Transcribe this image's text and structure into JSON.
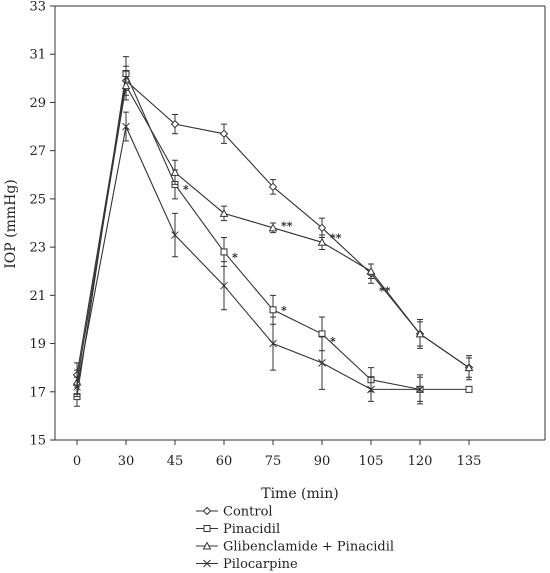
{
  "chart_data": {
    "type": "line",
    "title": "",
    "xlabel": "Time (min)",
    "ylabel": "IOP (mmHg)",
    "x": [
      0,
      30,
      45,
      60,
      75,
      90,
      105,
      120,
      135
    ],
    "x_tick_labels": [
      "0",
      "30",
      "45",
      "60",
      "75",
      "90",
      "105",
      "120",
      "135"
    ],
    "ylim": [
      15,
      33
    ],
    "y_ticks": [
      15,
      17,
      19,
      21,
      23,
      25,
      27,
      29,
      31,
      33
    ],
    "y_tick_labels": [
      "15",
      "17",
      "19",
      "21",
      "23",
      "25",
      "27",
      "29",
      "31",
      "33"
    ],
    "grid": false,
    "legend_position": "bottom",
    "series": [
      {
        "name": "Control",
        "marker": "diamond",
        "x": [
          0,
          30,
          45,
          60,
          75,
          90,
          105,
          120,
          135
        ],
        "values": [
          17.7,
          29.9,
          28.1,
          27.7,
          25.5,
          23.8,
          21.9,
          19.4,
          18.0
        ],
        "errors": [
          0.5,
          0.6,
          0.4,
          0.4,
          0.3,
          0.4,
          0.4,
          0.5,
          0.4
        ]
      },
      {
        "name": "Pinacidil",
        "marker": "square",
        "x": [
          0,
          30,
          45,
          60,
          75,
          90,
          105,
          120,
          135
        ],
        "values": [
          16.8,
          30.2,
          25.6,
          22.8,
          20.4,
          19.4,
          17.5,
          17.1,
          17.1
        ],
        "errors": [
          0.4,
          0.7,
          0.6,
          0.6,
          0.6,
          0.7,
          0.5,
          0.5,
          0
        ]
      },
      {
        "name": "Glibenclamide + Pinacidil",
        "marker": "triangle",
        "x": [
          0,
          30,
          45,
          60,
          75,
          90,
          105,
          120,
          135
        ],
        "values": [
          17.4,
          29.7,
          26.1,
          24.4,
          23.8,
          23.2,
          22.0,
          19.4,
          18.0
        ],
        "errors": [
          0.5,
          0.6,
          0.5,
          0.3,
          0.2,
          0.3,
          0.3,
          0.6,
          0.5
        ]
      },
      {
        "name": "Pilocarpine",
        "marker": "x",
        "x": [
          0,
          30,
          45,
          60,
          75,
          90,
          105,
          120
        ],
        "values": [
          17.2,
          28.0,
          23.5,
          21.4,
          19.0,
          18.2,
          17.1,
          17.1
        ],
        "errors": [
          0.4,
          0.6,
          0.9,
          1.0,
          1.1,
          1.1,
          0.5,
          0.6
        ]
      }
    ],
    "annotations": [
      {
        "text": "*",
        "x": 45,
        "y": 25.4
      },
      {
        "text": "*",
        "x": 60,
        "y": 22.6
      },
      {
        "text": "*",
        "x": 75,
        "y": 20.4
      },
      {
        "text": "*",
        "x": 90,
        "y": 19.1
      },
      {
        "text": "**",
        "x": 75,
        "y": 23.9
      },
      {
        "text": "**",
        "x": 90,
        "y": 23.4
      },
      {
        "text": "**",
        "x": 105,
        "y": 21.2
      }
    ]
  }
}
